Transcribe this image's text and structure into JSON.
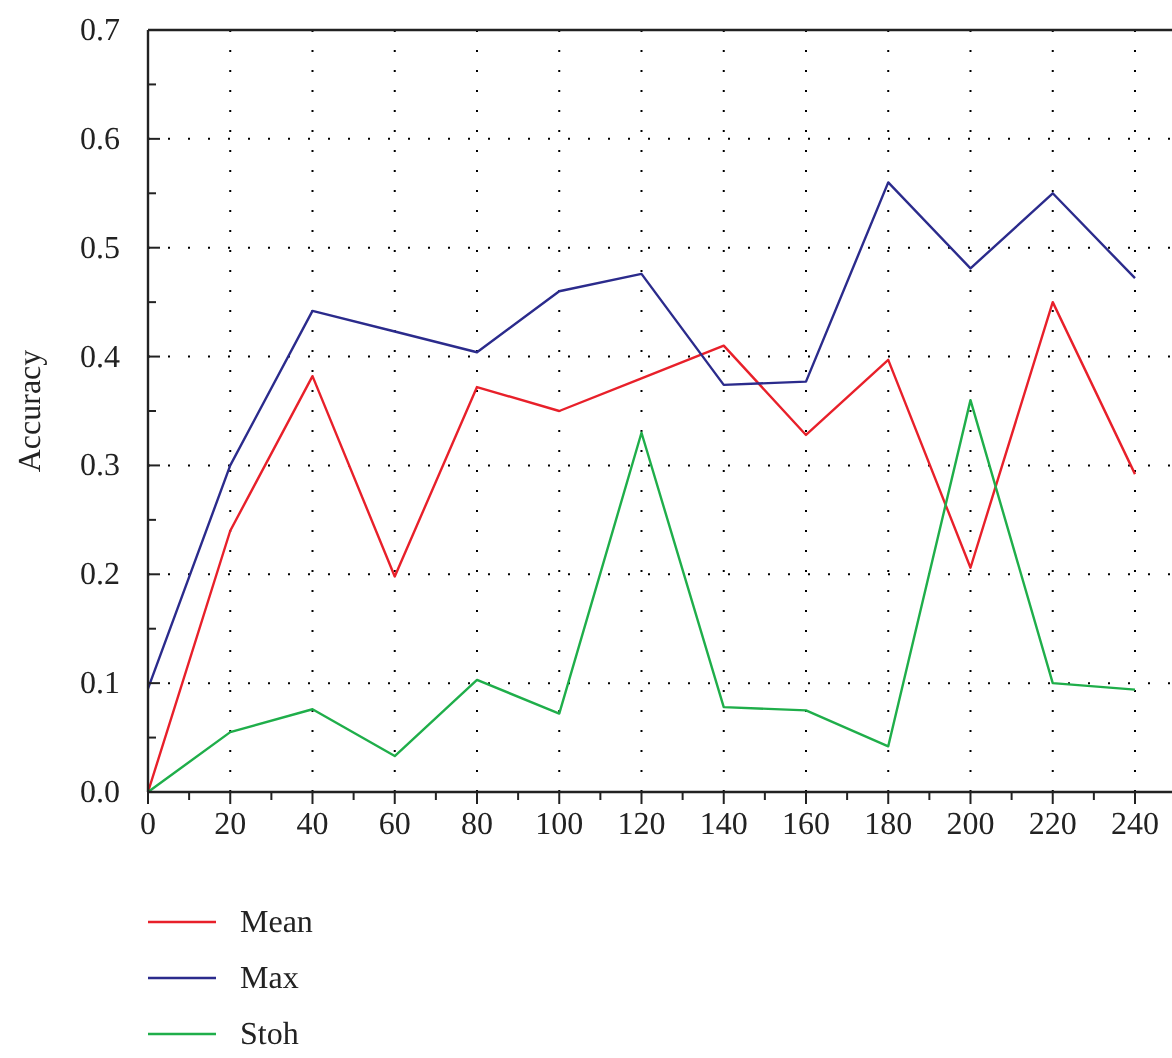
{
  "chart_data": {
    "type": "line",
    "ylabel": "Accuracy",
    "x": [
      0,
      20,
      40,
      60,
      80,
      100,
      120,
      140,
      160,
      180,
      200,
      220,
      240
    ],
    "series": [
      {
        "name": "Mean",
        "color": "#e8202a",
        "values": [
          0,
          0.24,
          0.382,
          0.198,
          0.372,
          0.35,
          0.38,
          0.41,
          0.328,
          0.397,
          0.206,
          0.45,
          0.292
        ]
      },
      {
        "name": "Max",
        "color": "#2b2b8c",
        "values": [
          0.095,
          0.3,
          0.442,
          0.423,
          0.404,
          0.46,
          0.476,
          0.374,
          0.377,
          0.56,
          0.481,
          0.55,
          0.472
        ]
      },
      {
        "name": "Stoh",
        "color": "#1fae4a",
        "values": [
          0,
          0.055,
          0.076,
          0.033,
          0.103,
          0.072,
          0.33,
          0.078,
          0.075,
          0.042,
          0.36,
          0.1,
          0.094
        ]
      }
    ],
    "xlim": [
      0,
      249
    ],
    "xticks": [
      0,
      {
        "value": 10,
        "label": null
      },
      20,
      {
        "value": 30,
        "label": null
      },
      40,
      {
        "value": 50,
        "label": null
      },
      60,
      {
        "value": 70,
        "label": null
      },
      80,
      {
        "value": 90,
        "label": null
      },
      100,
      {
        "value": 110,
        "label": null
      },
      120,
      {
        "value": 130,
        "label": null
      },
      140,
      {
        "value": 150,
        "label": null
      },
      160,
      {
        "value": 170,
        "label": null
      },
      180,
      {
        "value": 190,
        "label": null
      },
      200,
      {
        "value": 210,
        "label": null
      },
      220,
      {
        "value": 230,
        "label": null
      },
      240
    ],
    "ylim": [
      0,
      0.7
    ],
    "yticks": [
      {
        "value": 0,
        "label": "0.0"
      },
      {
        "value": 0.05,
        "label": null
      },
      0.1,
      {
        "value": 0.15,
        "label": null
      },
      0.2,
      {
        "value": 0.25,
        "label": null
      },
      0.3,
      {
        "value": 0.35,
        "label": null
      },
      0.4,
      {
        "value": 0.45,
        "label": null
      },
      0.5,
      {
        "value": 0.55,
        "label": null
      },
      0.6,
      {
        "value": 0.65,
        "label": null
      },
      0.7
    ],
    "grid": true,
    "legend": "bottom left",
    "marker": "none",
    "line_style": "solid"
  }
}
